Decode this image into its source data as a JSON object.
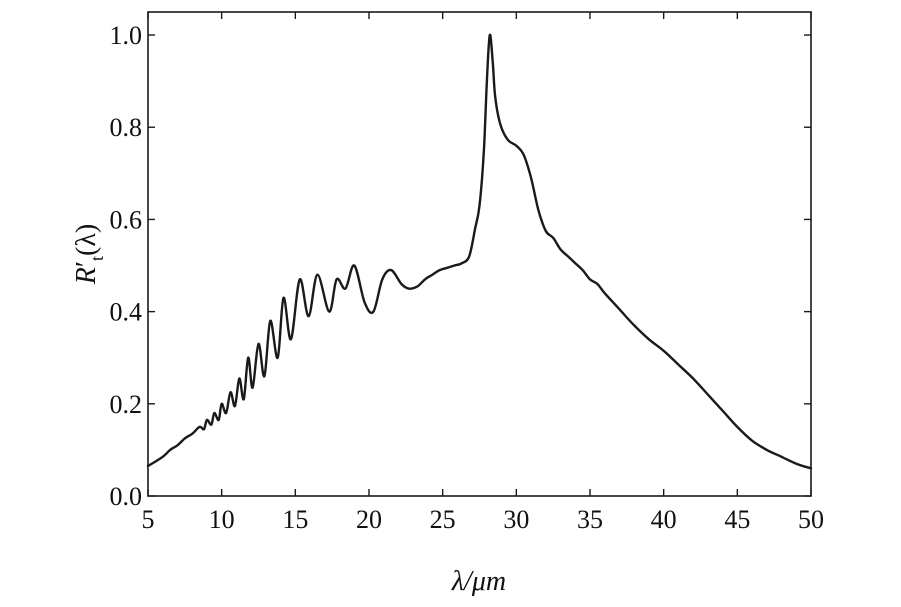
{
  "chart_data": {
    "type": "line",
    "title": "",
    "xlabel": "λ/μm",
    "ylabel": {
      "main": "R",
      "prime": "′",
      "sub": "t",
      "arg": "(λ)"
    },
    "xlim": [
      5,
      50
    ],
    "ylim": [
      0,
      1.05
    ],
    "xticks": [
      5,
      10,
      15,
      20,
      25,
      30,
      35,
      40,
      45,
      50
    ],
    "xtick_labels": [
      "5",
      "10",
      "15",
      "20",
      "25",
      "30",
      "35",
      "40",
      "45",
      "50"
    ],
    "yticks": [
      0.0,
      0.2,
      0.4,
      0.6,
      0.8,
      1.0
    ],
    "ytick_labels": [
      "0.0",
      "0.2",
      "0.4",
      "0.6",
      "0.8",
      "1.0"
    ],
    "grid": false,
    "legend": "none",
    "line_color": "#1a1a1a",
    "series": [
      {
        "x": [
          5.0,
          6.0,
          6.5,
          7.0,
          7.5,
          8.0,
          8.5,
          8.8,
          9.0,
          9.3,
          9.5,
          9.8,
          10.0,
          10.3,
          10.6,
          10.9,
          11.2,
          11.5,
          11.8,
          12.1,
          12.5,
          12.9,
          13.3,
          13.8,
          14.2,
          14.7,
          15.3,
          15.9,
          16.5,
          17.3,
          17.8,
          18.4,
          19.0,
          19.7,
          20.3,
          20.9,
          21.5,
          22.2,
          22.7,
          23.3,
          23.8,
          24.3,
          24.8,
          25.3,
          25.8,
          26.3,
          26.8,
          27.2,
          27.5,
          27.8,
          28.0,
          28.2,
          28.4,
          28.55,
          28.8,
          29.1,
          29.5,
          30.0,
          30.5,
          31.0,
          31.5,
          32.0,
          32.5,
          33.0,
          33.5,
          34.0,
          34.5,
          35.0,
          35.5,
          36.0,
          37.0,
          38.0,
          39.0,
          40.0,
          41.0,
          42.0,
          43.0,
          44.0,
          45.0,
          46.0,
          47.0,
          48.0,
          49.0,
          50.0
        ],
        "y": [
          0.065,
          0.085,
          0.1,
          0.11,
          0.125,
          0.135,
          0.15,
          0.145,
          0.165,
          0.155,
          0.18,
          0.165,
          0.2,
          0.18,
          0.225,
          0.195,
          0.255,
          0.21,
          0.3,
          0.235,
          0.33,
          0.26,
          0.38,
          0.3,
          0.43,
          0.34,
          0.47,
          0.39,
          0.48,
          0.4,
          0.47,
          0.45,
          0.5,
          0.42,
          0.4,
          0.47,
          0.49,
          0.46,
          0.45,
          0.455,
          0.47,
          0.48,
          0.49,
          0.495,
          0.5,
          0.505,
          0.52,
          0.58,
          0.63,
          0.75,
          0.9,
          1.0,
          0.94,
          0.87,
          0.82,
          0.79,
          0.77,
          0.76,
          0.74,
          0.69,
          0.62,
          0.575,
          0.56,
          0.535,
          0.52,
          0.505,
          0.49,
          0.47,
          0.46,
          0.44,
          0.405,
          0.37,
          0.34,
          0.315,
          0.285,
          0.255,
          0.22,
          0.185,
          0.15,
          0.12,
          0.1,
          0.085,
          0.07,
          0.06
        ]
      }
    ]
  }
}
